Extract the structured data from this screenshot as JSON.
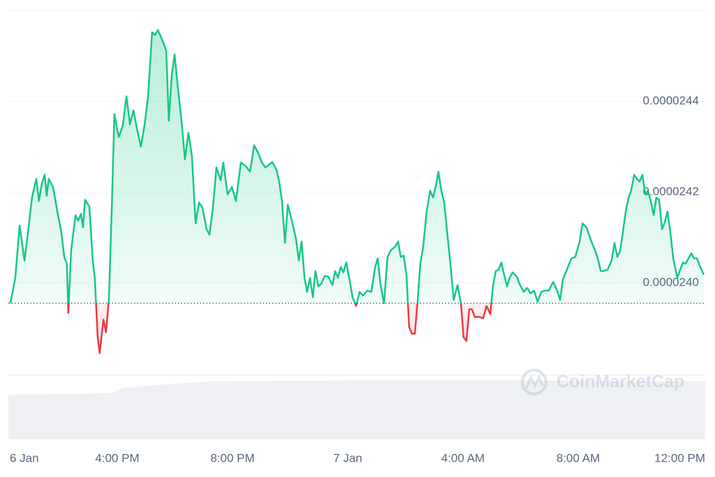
{
  "chart_data": {
    "type": "line",
    "watermark": "CoinMarketCap",
    "color": "#16c784",
    "negative_color": "#ea3943",
    "xlim": [
      12.22,
      36.41
    ],
    "xticks": [
      {
        "value": 12,
        "label": "6 Jan"
      },
      {
        "value": 16,
        "label": "4:00 PM"
      },
      {
        "value": 20,
        "label": "8:00 PM"
      },
      {
        "value": 24,
        "label": "7 Jan"
      },
      {
        "value": 28,
        "label": "4:00 AM"
      },
      {
        "value": 32,
        "label": "8:00 AM"
      },
      {
        "value": 36,
        "label": "12:00 PM"
      }
    ],
    "ylim": [
      2.38e-05,
      2.46e-05
    ],
    "yticks": [
      {
        "value": 2.4e-05,
        "label": "0.0000240"
      },
      2.42e-05,
      2.44e-05
    ],
    "grid": true,
    "x": [
      12.29,
      12.46,
      12.61,
      12.78,
      12.9,
      13.04,
      13.19,
      13.28,
      13.38,
      13.48,
      13.55,
      13.62,
      13.77,
      13.92,
      14.06,
      14.16,
      14.25,
      14.3,
      14.4,
      14.55,
      14.64,
      14.74,
      14.81,
      14.88,
      15.03,
      15.15,
      15.22,
      15.32,
      15.39,
      15.52,
      15.61,
      15.71,
      15.81,
      15.9,
      16.05,
      16.19,
      16.32,
      16.44,
      16.56,
      16.68,
      16.82,
      16.95,
      17.07,
      17.21,
      17.31,
      17.41,
      17.55,
      17.7,
      17.79,
      17.89,
      17.99,
      18.11,
      18.23,
      18.35,
      18.47,
      18.59,
      18.72,
      18.84,
      18.96,
      19.1,
      19.2,
      19.32,
      19.44,
      19.59,
      19.68,
      19.83,
      19.98,
      20.12,
      20.29,
      20.46,
      20.61,
      20.75,
      20.9,
      21.02,
      21.14,
      21.26,
      21.38,
      21.53,
      21.62,
      21.72,
      21.82,
      21.92,
      22.06,
      22.21,
      22.3,
      22.4,
      22.5,
      22.59,
      22.69,
      22.79,
      22.88,
      22.98,
      23.08,
      23.2,
      23.32,
      23.47,
      23.56,
      23.66,
      23.76,
      23.85,
      23.95,
      24.05,
      24.17,
      24.29,
      24.41,
      24.53,
      24.68,
      24.82,
      24.95,
      25.04,
      25.14,
      25.26,
      25.38,
      25.5,
      25.65,
      25.75,
      25.84,
      25.94,
      26.04,
      26.13,
      26.23,
      26.33,
      26.42,
      26.52,
      26.62,
      26.74,
      26.86,
      26.96,
      27.05,
      27.15,
      27.25,
      27.35,
      27.44,
      27.56,
      27.68,
      27.81,
      27.93,
      28.02,
      28.12,
      28.22,
      28.31,
      28.41,
      28.56,
      28.7,
      28.82,
      28.95,
      29.04,
      29.14,
      29.24,
      29.33,
      29.43,
      29.53,
      29.62,
      29.72,
      29.87,
      29.96,
      30.11,
      30.23,
      30.35,
      30.47,
      30.59,
      30.72,
      30.84,
      30.98,
      31.13,
      31.27,
      31.37,
      31.47,
      31.61,
      31.76,
      31.9,
      32.05,
      32.15,
      32.29,
      32.44,
      32.58,
      32.68,
      32.78,
      32.87,
      33.02,
      33.16,
      33.26,
      33.36,
      33.45,
      33.55,
      33.65,
      33.75,
      33.84,
      33.94,
      34.04,
      34.13,
      34.23,
      34.33,
      34.42,
      34.52,
      34.62,
      34.71,
      34.81,
      34.91,
      35.01,
      35.1,
      35.2,
      35.3,
      35.44,
      35.54,
      35.64,
      35.73,
      35.83,
      35.93,
      36.02,
      36.12,
      36.22,
      36.36
    ],
    "values": [
      2.3955e-05,
      2.4011e-05,
      2.4126e-05,
      2.4049e-05,
      2.4111e-05,
      2.4188e-05,
      2.4229e-05,
      2.418e-05,
      2.4218e-05,
      2.4238e-05,
      2.4192e-05,
      2.4229e-05,
      2.4211e-05,
      2.4157e-05,
      2.4111e-05,
      2.4057e-05,
      2.4042e-05,
      2.3934e-05,
      2.4072e-05,
      2.4149e-05,
      2.4137e-05,
      2.4152e-05,
      2.4122e-05,
      2.4183e-05,
      2.4168e-05,
      2.4049e-05,
      2.4011e-05,
      2.388e-05,
      2.3845e-05,
      2.3919e-05,
      2.3891e-05,
      2.3965e-05,
      2.4165e-05,
      2.4372e-05,
      2.4321e-05,
      2.4346e-05,
      2.4411e-05,
      2.4349e-05,
      2.438e-05,
      2.4341e-05,
      2.43e-05,
      2.4349e-05,
      2.4411e-05,
      2.4552e-05,
      2.4546e-05,
      2.4557e-05,
      2.4537e-05,
      2.4511e-05,
      2.4357e-05,
      2.4457e-05,
      2.4503e-05,
      2.4426e-05,
      2.4357e-05,
      2.4272e-05,
      2.4331e-05,
      2.428e-05,
      2.4131e-05,
      2.4177e-05,
      2.4165e-05,
      2.4118e-05,
      2.4106e-05,
      2.4165e-05,
      2.4254e-05,
      2.4226e-05,
      2.4265e-05,
      2.4195e-05,
      2.4211e-05,
      2.418e-05,
      2.4265e-05,
      2.4257e-05,
      2.4245e-05,
      2.4303e-05,
      2.4285e-05,
      2.4265e-05,
      2.4254e-05,
      2.426e-05,
      2.4266e-05,
      2.4249e-05,
      2.4223e-05,
      2.418e-05,
      2.4088e-05,
      2.4172e-05,
      2.4137e-05,
      2.4095e-05,
      2.4049e-05,
      2.4091e-05,
      2.4011e-05,
      2.398e-05,
      2.4011e-05,
      2.3968e-05,
      2.4026e-05,
      2.3992e-05,
      2.3998e-05,
      2.4015e-05,
      2.4014e-05,
      2.3995e-05,
      2.4026e-05,
      2.4011e-05,
      2.4035e-05,
      2.4023e-05,
      2.4045e-05,
      2.4011e-05,
      2.3968e-05,
      2.3949e-05,
      2.398e-05,
      2.3972e-05,
      2.3983e-05,
      2.398e-05,
      2.4034e-05,
      2.4054e-05,
      2.3995e-05,
      2.3955e-05,
      2.4057e-05,
      2.4072e-05,
      2.408e-05,
      2.4091e-05,
      2.4057e-05,
      2.406e-05,
      2.4018e-05,
      2.3903e-05,
      2.3888e-05,
      2.3888e-05,
      2.3955e-05,
      2.4042e-05,
      2.408e-05,
      2.4157e-05,
      2.4203e-05,
      2.4188e-05,
      2.4211e-05,
      2.4245e-05,
      2.4203e-05,
      2.4177e-05,
      2.4118e-05,
      2.4045e-05,
      2.3962e-05,
      2.3995e-05,
      2.3955e-05,
      2.388e-05,
      2.3872e-05,
      2.3942e-05,
      2.3942e-05,
      2.3925e-05,
      2.3925e-05,
      2.3922e-05,
      2.3949e-05,
      2.3931e-05,
      2.3992e-05,
      2.4026e-05,
      2.4029e-05,
      2.4045e-05,
      2.4018e-05,
      2.3992e-05,
      2.4011e-05,
      2.4023e-05,
      2.4014e-05,
      2.3998e-05,
      2.398e-05,
      2.3989e-05,
      2.3977e-05,
      2.3983e-05,
      2.3958e-05,
      2.398e-05,
      2.3983e-05,
      2.3983e-05,
      2.4002e-05,
      2.3983e-05,
      2.3962e-05,
      2.4008e-05,
      2.4029e-05,
      2.4054e-05,
      2.4057e-05,
      2.4091e-05,
      2.4131e-05,
      2.4122e-05,
      2.4094e-05,
      2.4072e-05,
      2.4054e-05,
      2.4026e-05,
      2.4026e-05,
      2.4029e-05,
      2.4049e-05,
      2.4088e-05,
      2.4057e-05,
      2.4069e-05,
      2.4111e-05,
      2.4157e-05,
      2.4188e-05,
      2.4203e-05,
      2.4238e-05,
      2.4229e-05,
      2.4223e-05,
      2.4238e-05,
      2.4195e-05,
      2.4203e-05,
      2.418e-05,
      2.4149e-05,
      2.4188e-05,
      2.4183e-05,
      2.4118e-05,
      2.4134e-05,
      2.4157e-05,
      2.4111e-05,
      2.4054e-05,
      2.4011e-05,
      2.4029e-05,
      2.4045e-05,
      2.4042e-05,
      2.4054e-05,
      2.4065e-05,
      2.4054e-05,
      2.4054e-05,
      2.4038e-05,
      2.4018e-05
    ]
  }
}
